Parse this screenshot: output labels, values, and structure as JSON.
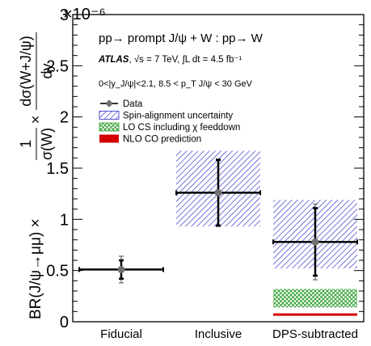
{
  "chart_data": {
    "type": "scatter",
    "title": "pp→ prompt J/ψ + W : pp→ W",
    "experiment": {
      "name": "ATLAS",
      "conditions": ", √s = 7 TeV, ∫L dt = 4.5 fb⁻¹"
    },
    "selection": "0<|y_J/ψ|<2.1, 8.5 < p_T J/ψ < 30 GeV",
    "ylabel": "BR(J/ψ→μμ) × (1/σ(W)) × dσ(W+J/ψ)/dy",
    "ylabel_prefix": "BR(J/ψ→μμ) × ",
    "ylabel_frac1_num": "1",
    "ylabel_frac1_den": "σ(W)",
    "ylabel_times": "×",
    "ylabel_frac2_num": "dσ(W+J/ψ)",
    "ylabel_frac2_den": "dy",
    "y_multiplier": "×10⁻⁶",
    "ylim": [
      0,
      3
    ],
    "yticks": [
      0,
      0.5,
      1,
      1.5,
      2,
      2.5,
      3
    ],
    "ytick_labels": [
      "0",
      "0.5",
      "1",
      "1.5",
      "2",
      "2.5",
      "3"
    ],
    "categories": [
      "Fiducial",
      "Inclusive",
      "DPS-subtracted"
    ],
    "series": [
      {
        "name": "Data",
        "values": [
          0.51,
          1.26,
          0.78
        ],
        "stat_err": [
          0.09,
          0.32,
          0.33
        ],
        "total_err": [
          0.13,
          0.33,
          0.37
        ],
        "color": "#000000"
      }
    ],
    "spin_alignment_band": [
      null,
      [
        0.93,
        1.67
      ],
      [
        0.52,
        1.19
      ]
    ],
    "lo_cs_band": [
      null,
      null,
      [
        0.14,
        0.32
      ]
    ],
    "nlo_co_value": [
      null,
      null,
      0.07
    ],
    "legend": [
      {
        "label": "Data",
        "kind": "marker"
      },
      {
        "label": "Spin-alignment uncertainty",
        "kind": "hatch-blue"
      },
      {
        "label": "LO CS including χ feeddown",
        "kind": "crosshatch-green"
      },
      {
        "label": "NLO CO prediction",
        "kind": "solid-red"
      }
    ],
    "legend_position": "upper-left",
    "colors": {
      "data": "#000000",
      "marker": "#707070",
      "spin_band": "#2b2bc8",
      "lo_cs": "#2f9e2f",
      "nlo_co": "#d40000"
    },
    "grid": false
  }
}
